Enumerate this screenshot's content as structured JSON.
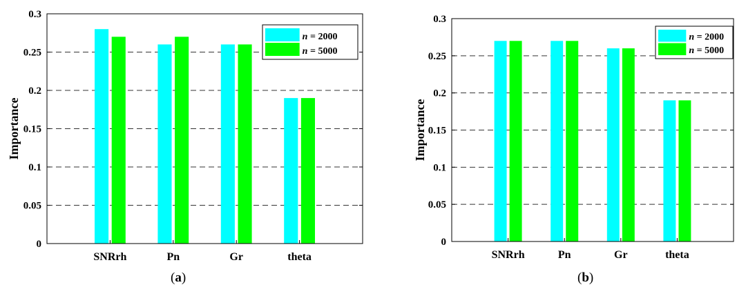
{
  "chart_data": [
    {
      "panel": "a",
      "type": "bar",
      "caption_open": "(",
      "caption_letter": "a",
      "caption_close": ")",
      "categories": [
        "SNRrh",
        "Pn",
        "Gr",
        "theta"
      ],
      "series": [
        {
          "name": "n = 2000",
          "name_var": "n",
          "name_rest": " = 2000",
          "color": "#00ffff",
          "values": [
            0.28,
            0.26,
            0.26,
            0.19
          ]
        },
        {
          "name": "n = 5000",
          "name_var": "n",
          "name_rest": " = 5000",
          "color": "#00ff00",
          "values": [
            0.27,
            0.27,
            0.26,
            0.19
          ]
        }
      ],
      "ylabel": "Importance",
      "ylim": [
        0,
        0.3
      ],
      "yticks": [
        0,
        0.05,
        0.1,
        0.15,
        0.2,
        0.25,
        0.3
      ],
      "ytick_labels": [
        "0",
        "0.05",
        "0.1",
        "0.15",
        "0.2",
        "0.25",
        "0.3"
      ],
      "grid": "horizontal dashed",
      "legend": "top-right"
    },
    {
      "panel": "b",
      "type": "bar",
      "caption_open": "(",
      "caption_letter": "b",
      "caption_close": ")",
      "categories": [
        "SNRrh",
        "Pn",
        "Gr",
        "theta"
      ],
      "series": [
        {
          "name": "n = 2000",
          "name_var": "n",
          "name_rest": " = 2000",
          "color": "#00ffff",
          "values": [
            0.27,
            0.27,
            0.26,
            0.19
          ]
        },
        {
          "name": "n = 5000",
          "name_var": "n",
          "name_rest": " = 5000",
          "color": "#00ff00",
          "values": [
            0.27,
            0.27,
            0.26,
            0.19
          ]
        }
      ],
      "ylabel": "Importance",
      "ylim": [
        0,
        0.3
      ],
      "yticks": [
        0,
        0.05,
        0.1,
        0.15,
        0.2,
        0.25,
        0.3
      ],
      "ytick_labels": [
        "0",
        "0.05",
        "0.1",
        "0.15",
        "0.2",
        "0.25",
        "0.3"
      ],
      "grid": "horizontal dashed",
      "legend": "top-right"
    }
  ]
}
